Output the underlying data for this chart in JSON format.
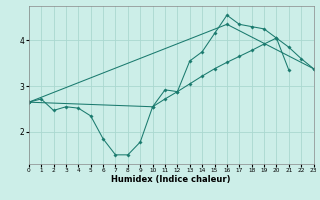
{
  "xlabel": "Humidex (Indice chaleur)",
  "bg_color": "#cceee8",
  "grid_color": "#aad8d0",
  "line_color": "#1a7a6e",
  "xlim": [
    0,
    23
  ],
  "ylim": [
    1.3,
    4.75
  ],
  "yticks": [
    2,
    3,
    4
  ],
  "xticks": [
    0,
    1,
    2,
    3,
    4,
    5,
    6,
    7,
    8,
    9,
    10,
    11,
    12,
    13,
    14,
    15,
    16,
    17,
    18,
    19,
    20,
    21,
    22,
    23
  ],
  "curve1_x": [
    0,
    1,
    2,
    3,
    4,
    5,
    6,
    7,
    8,
    9,
    10,
    11,
    12,
    13,
    14,
    15,
    16,
    17,
    18,
    19,
    20,
    21
  ],
  "curve1_y": [
    2.65,
    2.72,
    2.47,
    2.55,
    2.52,
    2.35,
    1.85,
    1.5,
    1.5,
    1.78,
    2.55,
    2.92,
    2.88,
    3.55,
    3.75,
    4.15,
    4.55,
    4.35,
    4.3,
    4.25,
    4.05,
    3.35
  ],
  "curve2_x": [
    0,
    16,
    23
  ],
  "curve2_y": [
    2.65,
    4.35,
    3.38
  ],
  "curve3_x": [
    0,
    10,
    11,
    12,
    13,
    14,
    15,
    16,
    17,
    18,
    19,
    20,
    21,
    22,
    23
  ],
  "curve3_y": [
    2.65,
    2.55,
    2.72,
    2.88,
    3.05,
    3.22,
    3.38,
    3.52,
    3.65,
    3.78,
    3.92,
    4.05,
    3.85,
    3.6,
    3.38
  ]
}
